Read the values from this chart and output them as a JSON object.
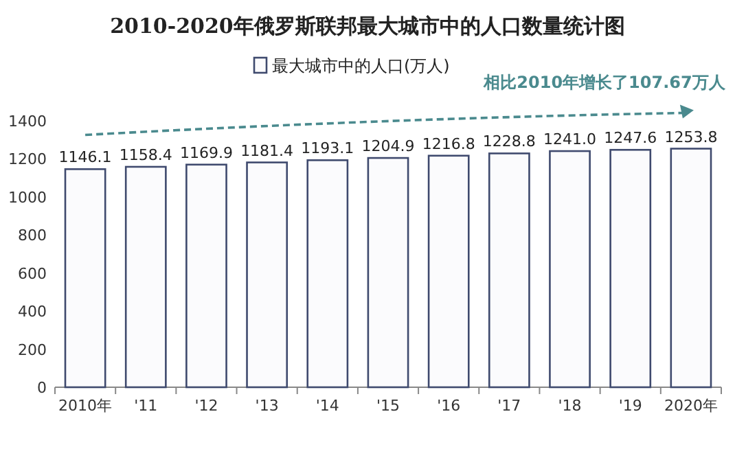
{
  "chart_data": {
    "type": "bar",
    "title": "2010-2020年俄罗斯联邦最大城市中的人口数量统计图",
    "categories": [
      "2010年",
      "'11",
      "'12",
      "'13",
      "'14",
      "'15",
      "'16",
      "'17",
      "'18",
      "'19",
      "2020年"
    ],
    "series": [
      {
        "name": "最大城市中的人口(万人)",
        "color": "#3f4a6e",
        "values": [
          1146.1,
          1158.4,
          1169.9,
          1181.4,
          1193.1,
          1204.9,
          1216.8,
          1228.8,
          1241.0,
          1247.6,
          1253.8
        ]
      }
    ],
    "value_labels": [
      "1146.1",
      "1158.4",
      "1169.9",
      "1181.4",
      "1193.1",
      "1204.9",
      "1216.8",
      "1228.8",
      "1241.0",
      "1247.6",
      "1253.8"
    ],
    "ylim": [
      0,
      1400
    ],
    "yticks": [
      0,
      200,
      400,
      600,
      800,
      1000,
      1200,
      1400
    ],
    "grid": false,
    "legend": "top",
    "annotations": [
      "相比2010年增长了107.67万人"
    ]
  }
}
